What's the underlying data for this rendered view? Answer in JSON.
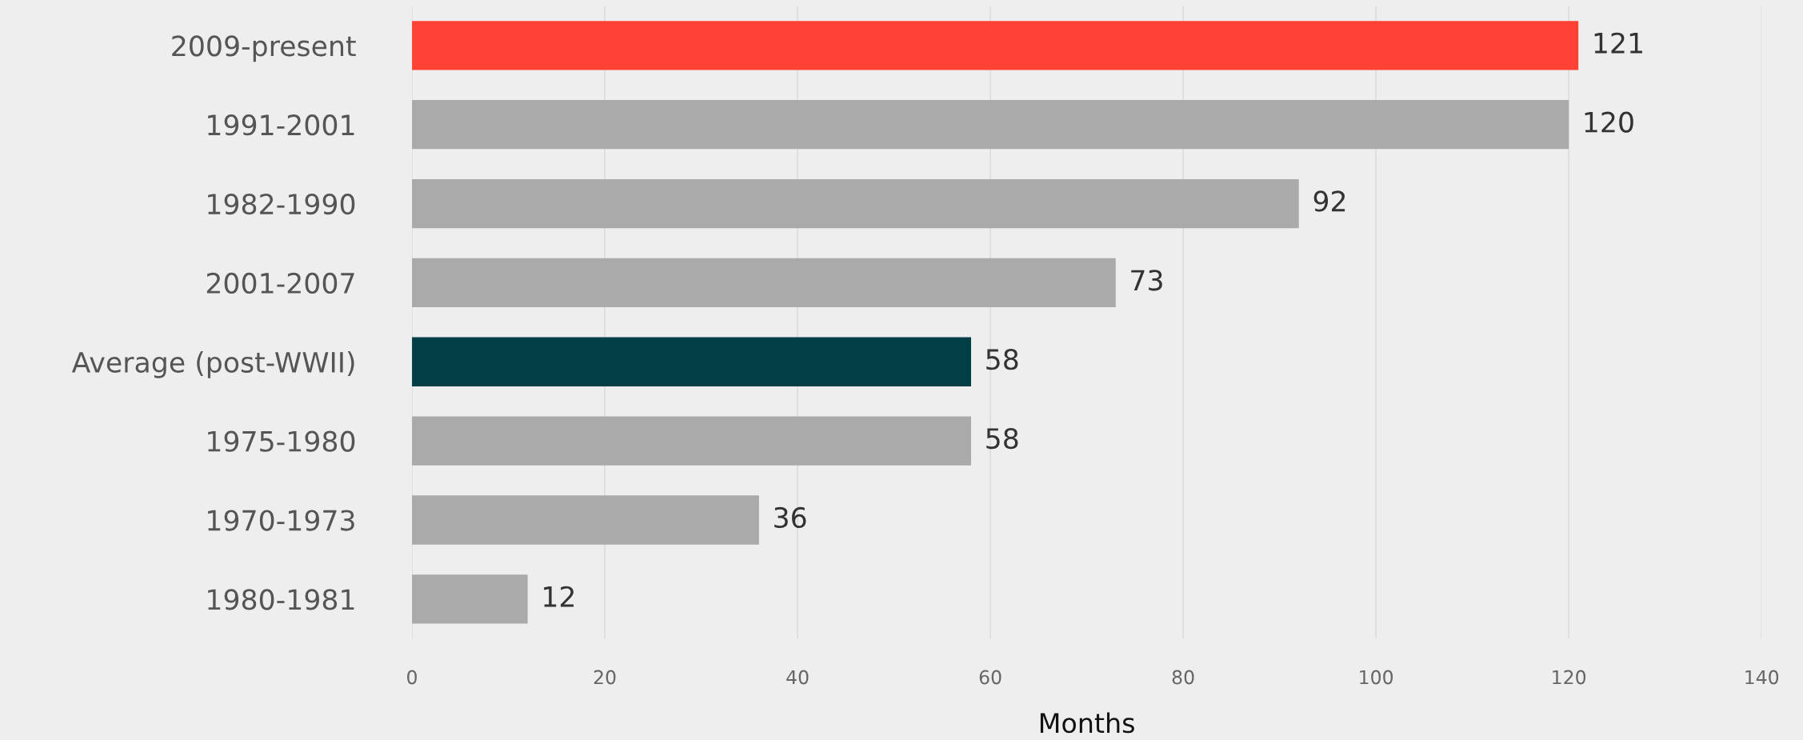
{
  "chart_data": {
    "type": "bar",
    "orientation": "horizontal",
    "categories": [
      "2009-present",
      "1991-2001",
      "1982-1990",
      "2001-2007",
      "Average (post-WWII)",
      "1975-1980",
      "1970-1973",
      "1980-1981"
    ],
    "values": [
      121,
      120,
      92,
      73,
      58,
      58,
      36,
      12
    ],
    "colors": [
      "#ff4136",
      "#aaaaaa",
      "#aaaaaa",
      "#aaaaaa",
      "#023e45",
      "#aaaaaa",
      "#aaaaaa",
      "#aaaaaa"
    ],
    "xlabel": "Months",
    "xlim": [
      0,
      140
    ],
    "xticks": [
      0,
      20,
      40,
      60,
      80,
      100,
      120,
      140
    ],
    "grid": "x",
    "data_labels": true
  }
}
